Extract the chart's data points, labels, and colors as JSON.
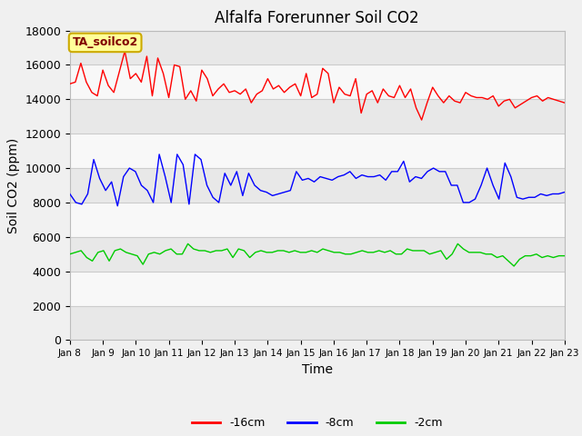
{
  "title": "Alfalfa Forerunner Soil CO2",
  "xlabel": "Time",
  "ylabel": "Soil CO2 (ppm)",
  "ylabel_fontsize": 10,
  "xlabel_fontsize": 10,
  "title_fontsize": 12,
  "ylim": [
    0,
    18000
  ],
  "yticks": [
    0,
    2000,
    4000,
    6000,
    8000,
    10000,
    12000,
    14000,
    16000,
    18000
  ],
  "xtick_labels": [
    "Jan 8",
    "Jan 9",
    "Jan 10",
    "Jan 11",
    "Jan 12",
    "Jan 13",
    "Jan 14",
    "Jan 15",
    "Jan 16",
    "Jan 17",
    "Jan 18",
    "Jan 19",
    "Jan 20",
    "Jan 21",
    "Jan 22",
    "Jan 23"
  ],
  "figure_bg": "#f0f0f0",
  "plot_bg": "#ffffff",
  "band_color_light": "#e8e8e8",
  "band_color_white": "#f8f8f8",
  "line_colors": [
    "#ff0000",
    "#0000ff",
    "#00cc00"
  ],
  "line_labels": [
    "-16cm",
    "-8cm",
    "-2cm"
  ],
  "annotation_text": "TA_soilco2",
  "annotation_bg": "#ffff99",
  "annotation_border": "#ccaa00",
  "grid_color": "#cccccc",
  "red_data": [
    14900,
    15000,
    16100,
    15000,
    14400,
    14200,
    15700,
    14800,
    14400,
    15600,
    16800,
    15200,
    15500,
    15000,
    16500,
    14200,
    16400,
    15500,
    14100,
    16000,
    15900,
    14000,
    14500,
    13900,
    15700,
    15200,
    14200,
    14600,
    14900,
    14400,
    14500,
    14300,
    14600,
    13800,
    14300,
    14500,
    15200,
    14600,
    14800,
    14400,
    14700,
    14900,
    14200,
    15500,
    14100,
    14300,
    15800,
    15500,
    13800,
    14700,
    14300,
    14200,
    15200,
    13200,
    14300,
    14500,
    13800,
    14600,
    14200,
    14100,
    14800,
    14100,
    14600,
    13500,
    12800,
    13800,
    14700,
    14200,
    13800,
    14200,
    13900,
    13800,
    14400,
    14200,
    14100,
    14100,
    14000,
    14200,
    13600,
    13900,
    14000,
    13500,
    13700,
    13900,
    14100,
    14200,
    13900,
    14100,
    14000,
    13900,
    13800
  ],
  "blue_data": [
    8500,
    8000,
    7900,
    8500,
    10500,
    9400,
    8700,
    9200,
    7800,
    9500,
    10000,
    9800,
    9000,
    8700,
    8000,
    10800,
    9500,
    8000,
    10800,
    10200,
    7900,
    10800,
    10500,
    9000,
    8300,
    8000,
    9700,
    9000,
    9800,
    8400,
    9700,
    9000,
    8700,
    8600,
    8400,
    8500,
    8600,
    8700,
    9800,
    9300,
    9400,
    9200,
    9500,
    9400,
    9300,
    9500,
    9600,
    9800,
    9400,
    9600,
    9500,
    9500,
    9600,
    9300,
    9800,
    9800,
    10400,
    9200,
    9500,
    9400,
    9800,
    10000,
    9800,
    9800,
    9000,
    9000,
    8000,
    8000,
    8200,
    9000,
    10000,
    9000,
    8200,
    10300,
    9500,
    8300,
    8200,
    8300,
    8300,
    8500,
    8400,
    8500,
    8500,
    8600
  ],
  "green_data": [
    5000,
    5100,
    5200,
    4800,
    4600,
    5100,
    5200,
    4600,
    5200,
    5300,
    5100,
    5000,
    4900,
    4400,
    5000,
    5100,
    5000,
    5200,
    5300,
    5000,
    5000,
    5600,
    5300,
    5200,
    5200,
    5100,
    5200,
    5200,
    5300,
    4800,
    5300,
    5200,
    4800,
    5100,
    5200,
    5100,
    5100,
    5200,
    5200,
    5100,
    5200,
    5100,
    5100,
    5200,
    5100,
    5300,
    5200,
    5100,
    5100,
    5000,
    5000,
    5100,
    5200,
    5100,
    5100,
    5200,
    5100,
    5200,
    5000,
    5000,
    5300,
    5200,
    5200,
    5200,
    5000,
    5100,
    5200,
    4700,
    5000,
    5600,
    5300,
    5100,
    5100,
    5100,
    5000,
    5000,
    4800,
    4900,
    4600,
    4300,
    4700,
    4900,
    4900,
    5000,
    4800,
    4900,
    4800,
    4900,
    4900
  ]
}
